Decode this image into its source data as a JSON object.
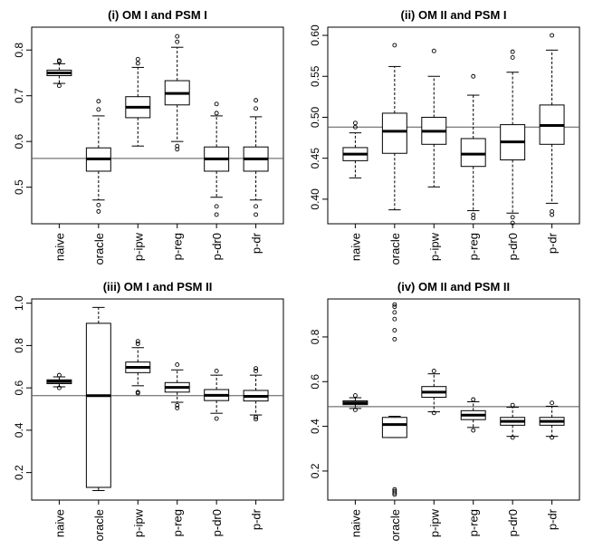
{
  "figure": {
    "colors": {
      "box_fill": "#ffffff",
      "stroke": "#000000",
      "refline": "#555555",
      "outlier": "#000000"
    }
  },
  "chart_data": [
    {
      "type": "boxplot",
      "title": "(i) OM I and PSM I",
      "categories": [
        "naive",
        "oracle",
        "p-ipw",
        "p-reg",
        "p-dr0",
        "p-dr"
      ],
      "ylim": [
        0.42,
        0.85
      ],
      "yticks": [
        0.5,
        0.6,
        0.7,
        0.8
      ],
      "ytick_labels": [
        "0.5",
        "0.6",
        "0.7",
        "0.8"
      ],
      "reference_line": 0.563,
      "boxes": [
        {
          "whisker_low": 0.727,
          "q1": 0.744,
          "median": 0.75,
          "q3": 0.756,
          "whisker_high": 0.77,
          "outliers": [
            0.722,
            0.775,
            0.777
          ]
        },
        {
          "whisker_low": 0.472,
          "q1": 0.535,
          "median": 0.562,
          "q3": 0.586,
          "whisker_high": 0.656,
          "outliers": [
            0.447,
            0.461,
            0.67,
            0.688
          ]
        },
        {
          "whisker_low": 0.59,
          "q1": 0.652,
          "median": 0.675,
          "q3": 0.698,
          "whisker_high": 0.762,
          "outliers": [
            0.771,
            0.78
          ]
        },
        {
          "whisker_low": 0.6,
          "q1": 0.68,
          "median": 0.705,
          "q3": 0.733,
          "whisker_high": 0.806,
          "outliers": [
            0.583,
            0.59,
            0.818,
            0.83
          ]
        },
        {
          "whisker_low": 0.478,
          "q1": 0.535,
          "median": 0.562,
          "q3": 0.588,
          "whisker_high": 0.656,
          "outliers": [
            0.44,
            0.458,
            0.662,
            0.682
          ]
        },
        {
          "whisker_low": 0.472,
          "q1": 0.535,
          "median": 0.562,
          "q3": 0.588,
          "whisker_high": 0.654,
          "outliers": [
            0.44,
            0.458,
            0.672,
            0.69
          ]
        }
      ]
    },
    {
      "type": "boxplot",
      "title": "(ii) OM II and PSM I",
      "categories": [
        "naive",
        "oracle",
        "p-ipw",
        "p-reg",
        "p-dr0",
        "p-dr"
      ],
      "ylim": [
        0.37,
        0.61
      ],
      "yticks": [
        0.4,
        0.45,
        0.5,
        0.55,
        0.6
      ],
      "ytick_labels": [
        "0.40",
        "0.45",
        "0.50",
        "0.55",
        "0.60"
      ],
      "reference_line": 0.488,
      "boxes": [
        {
          "whisker_low": 0.426,
          "q1": 0.447,
          "median": 0.455,
          "q3": 0.463,
          "whisker_high": 0.481,
          "outliers": [
            0.488,
            0.493
          ]
        },
        {
          "whisker_low": 0.387,
          "q1": 0.456,
          "median": 0.483,
          "q3": 0.505,
          "whisker_high": 0.562,
          "outliers": [
            0.588
          ]
        },
        {
          "whisker_low": 0.415,
          "q1": 0.467,
          "median": 0.483,
          "q3": 0.5,
          "whisker_high": 0.55,
          "outliers": [
            0.581
          ]
        },
        {
          "whisker_low": 0.386,
          "q1": 0.44,
          "median": 0.455,
          "q3": 0.474,
          "whisker_high": 0.527,
          "outliers": [
            0.377,
            0.381,
            0.55
          ]
        },
        {
          "whisker_low": 0.383,
          "q1": 0.448,
          "median": 0.47,
          "q3": 0.491,
          "whisker_high": 0.555,
          "outliers": [
            0.371,
            0.378,
            0.573,
            0.58
          ]
        },
        {
          "whisker_low": 0.395,
          "q1": 0.467,
          "median": 0.49,
          "q3": 0.515,
          "whisker_high": 0.582,
          "outliers": [
            0.381,
            0.385,
            0.6
          ]
        }
      ]
    },
    {
      "type": "boxplot",
      "title": "(iii) OM I and PSM II",
      "categories": [
        "naive",
        "oracle",
        "p-ipw",
        "p-reg",
        "p-dr0",
        "p-dr"
      ],
      "ylim": [
        0.07,
        1.02
      ],
      "yticks": [
        0.2,
        0.4,
        0.6,
        0.8,
        1.0
      ],
      "ytick_labels": [
        "0.2",
        "0.4",
        "0.6",
        "0.8",
        "1.0"
      ],
      "reference_line": 0.563,
      "boxes": [
        {
          "whisker_low": 0.605,
          "q1": 0.62,
          "median": 0.63,
          "q3": 0.638,
          "whisker_high": 0.652,
          "outliers": [
            0.6,
            0.66
          ]
        },
        {
          "whisker_low": 0.115,
          "q1": 0.13,
          "median": 0.563,
          "q3": 0.905,
          "whisker_high": 0.98,
          "outliers": []
        },
        {
          "whisker_low": 0.61,
          "q1": 0.672,
          "median": 0.697,
          "q3": 0.722,
          "whisker_high": 0.79,
          "outliers": [
            0.575,
            0.58,
            0.808,
            0.82
          ]
        },
        {
          "whisker_low": 0.532,
          "q1": 0.58,
          "median": 0.602,
          "q3": 0.625,
          "whisker_high": 0.685,
          "outliers": [
            0.505,
            0.518,
            0.71
          ]
        },
        {
          "whisker_low": 0.48,
          "q1": 0.54,
          "median": 0.565,
          "q3": 0.592,
          "whisker_high": 0.66,
          "outliers": [
            0.455,
            0.68
          ]
        },
        {
          "whisker_low": 0.472,
          "q1": 0.538,
          "median": 0.56,
          "q3": 0.588,
          "whisker_high": 0.66,
          "outliers": [
            0.452,
            0.462,
            0.68,
            0.692
          ]
        }
      ]
    },
    {
      "type": "boxplot",
      "title": "(iv) OM II and PSM II",
      "categories": [
        "naive",
        "oracle",
        "p-ipw",
        "p-reg",
        "p-dr0",
        "p-dr"
      ],
      "ylim": [
        0.07,
        0.97
      ],
      "yticks": [
        0.2,
        0.4,
        0.6,
        0.8
      ],
      "ytick_labels": [
        "0.2",
        "0.4",
        "0.6",
        "0.8"
      ],
      "reference_line": 0.488,
      "boxes": [
        {
          "whisker_low": 0.48,
          "q1": 0.497,
          "median": 0.505,
          "q3": 0.514,
          "whisker_high": 0.528,
          "outliers": [
            0.474,
            0.538
          ]
        },
        {
          "whisker_low": 0.35,
          "q1": 0.35,
          "median": 0.408,
          "q3": 0.44,
          "whisker_high": 0.445,
          "outliers": [
            0.095,
            0.102,
            0.11,
            0.118,
            0.79,
            0.83,
            0.88,
            0.91,
            0.935,
            0.945
          ]
        },
        {
          "whisker_low": 0.465,
          "q1": 0.53,
          "median": 0.553,
          "q3": 0.578,
          "whisker_high": 0.635,
          "outliers": [
            0.46,
            0.648
          ]
        },
        {
          "whisker_low": 0.395,
          "q1": 0.43,
          "median": 0.45,
          "q3": 0.47,
          "whisker_high": 0.51,
          "outliers": [
            0.382,
            0.52
          ]
        },
        {
          "whisker_low": 0.355,
          "q1": 0.405,
          "median": 0.422,
          "q3": 0.44,
          "whisker_high": 0.485,
          "outliers": [
            0.35,
            0.495
          ]
        },
        {
          "whisker_low": 0.355,
          "q1": 0.405,
          "median": 0.422,
          "q3": 0.44,
          "whisker_high": 0.49,
          "outliers": [
            0.35,
            0.505
          ]
        }
      ]
    }
  ]
}
